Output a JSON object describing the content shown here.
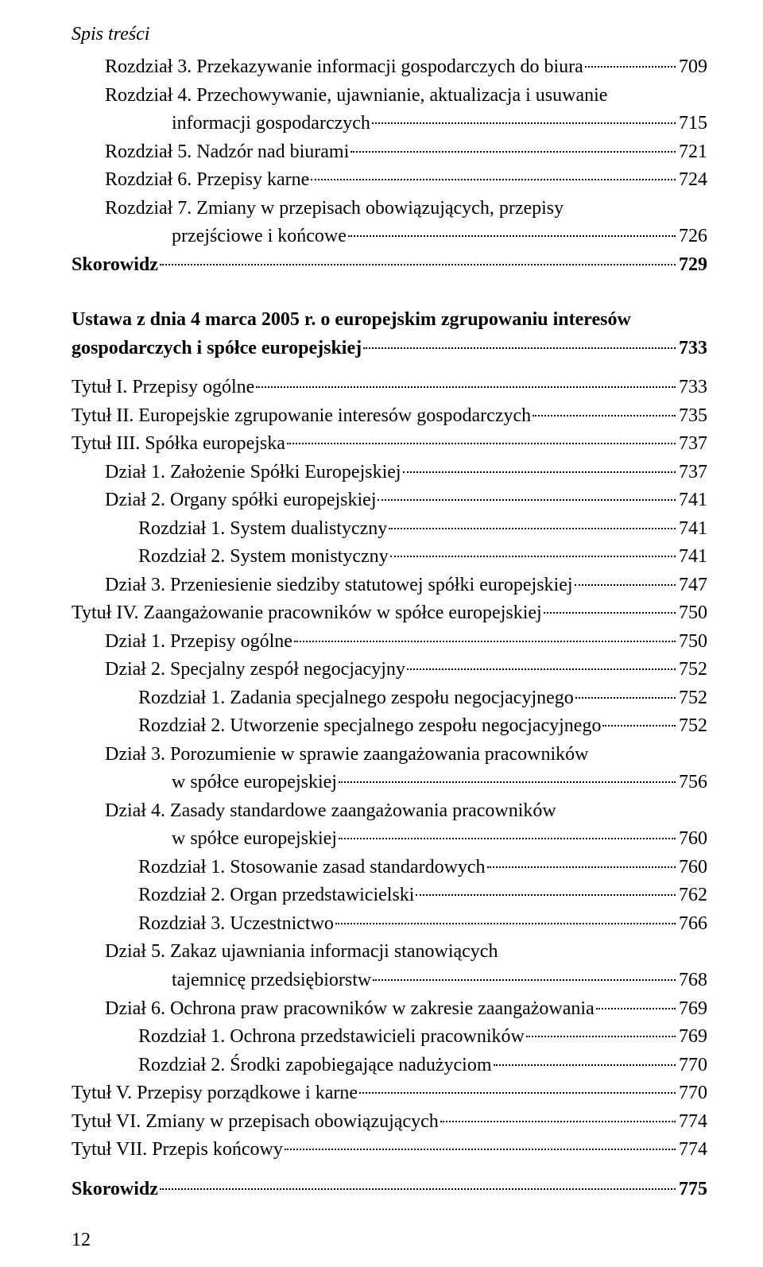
{
  "header": "Spis treści",
  "footer": "12",
  "block1": [
    {
      "indent": 1,
      "text": "Rozdział 3. Przekazywanie informacji gospodarczych do biura",
      "page": "709"
    },
    {
      "indent": 1,
      "text": "Rozdział 4. Przechowywanie, ujawnianie, aktualizacja i usuwanie"
    },
    {
      "indent": 0,
      "wrap": 2,
      "text": "informacji gospodarczych",
      "page": "715"
    },
    {
      "indent": 1,
      "text": "Rozdział 5. Nadzór nad biurami",
      "page": "721"
    },
    {
      "indent": 1,
      "text": "Rozdział 6. Przepisy karne",
      "page": "724"
    },
    {
      "indent": 1,
      "text": "Rozdział 7. Zmiany w przepisach obowiązujących, przepisy"
    },
    {
      "indent": 0,
      "wrap": 2,
      "text": "przejściowe i końcowe",
      "page": "726"
    },
    {
      "indent": 0,
      "bold": true,
      "text": "Skorowidz",
      "page": "729"
    }
  ],
  "block2_title_a": "Ustawa z dnia 4 marca 2005 r. o europejskim zgrupowaniu interesów",
  "block2_title_b": "gospodarczych i spółce europejskiej",
  "block2_title_page": "733",
  "block2": [
    {
      "indent": 0,
      "text": "Tytuł I. Przepisy ogólne",
      "page": "733"
    },
    {
      "indent": 0,
      "text": "Tytuł II. Europejskie zgrupowanie interesów gospodarczych",
      "page": "735"
    },
    {
      "indent": 0,
      "text": "Tytuł III. Spółka europejska",
      "page": "737"
    },
    {
      "indent": 1,
      "text": "Dział 1. Założenie Spółki Europejskiej",
      "page": "737"
    },
    {
      "indent": 1,
      "text": "Dział 2. Organy spółki europejskiej",
      "page": "741"
    },
    {
      "indent": 2,
      "text": "Rozdział 1. System dualistyczny",
      "page": "741"
    },
    {
      "indent": 2,
      "text": "Rozdział 2. System monistyczny",
      "page": "741"
    },
    {
      "indent": 1,
      "text": "Dział 3. Przeniesienie siedziby statutowej spółki europejskiej",
      "page": "747"
    },
    {
      "indent": 0,
      "text": "Tytuł IV. Zaangażowanie pracowników w spółce europejskiej",
      "page": "750"
    },
    {
      "indent": 1,
      "text": "Dział 1. Przepisy ogólne",
      "page": "750"
    },
    {
      "indent": 1,
      "text": "Dział 2. Specjalny zespół negocjacyjny",
      "page": "752"
    },
    {
      "indent": 2,
      "text": "Rozdział 1. Zadania specjalnego zespołu negocjacyjnego",
      "page": "752"
    },
    {
      "indent": 2,
      "text": "Rozdział 2. Utworzenie specjalnego zespołu negocjacyjnego",
      "page": "752"
    },
    {
      "indent": 1,
      "text": "Dział 3. Porozumienie w sprawie zaangażowania pracowników"
    },
    {
      "indent": 0,
      "wrap": 2,
      "text": "w spółce europejskiej",
      "page": "756"
    },
    {
      "indent": 1,
      "text": "Dział 4. Zasady standardowe zaangażowania pracowników"
    },
    {
      "indent": 0,
      "wrap": 2,
      "text": "w spółce europejskiej",
      "page": "760"
    },
    {
      "indent": 2,
      "text": "Rozdział 1. Stosowanie zasad standardowych",
      "page": "760"
    },
    {
      "indent": 2,
      "text": "Rozdział 2. Organ przedstawicielski",
      "page": "762"
    },
    {
      "indent": 2,
      "text": "Rozdział 3. Uczestnictwo",
      "page": "766"
    },
    {
      "indent": 1,
      "text": "Dział 5. Zakaz ujawniania informacji stanowiących"
    },
    {
      "indent": 0,
      "wrap": 2,
      "text": "tajemnicę przedsiębiorstw",
      "page": "768"
    },
    {
      "indent": 1,
      "text": "Dział 6. Ochrona praw pracowników w zakresie zaangażowania",
      "page": "769"
    },
    {
      "indent": 2,
      "text": "Rozdział 1. Ochrona przedstawicieli pracowników",
      "page": "769"
    },
    {
      "indent": 2,
      "text": "Rozdział 2. Środki zapobiegające nadużyciom",
      "page": "770"
    },
    {
      "indent": 0,
      "text": "Tytuł V. Przepisy porządkowe i karne",
      "page": "770"
    },
    {
      "indent": 0,
      "text": "Tytuł VI. Zmiany w przepisach obowiązujących",
      "page": "774"
    },
    {
      "indent": 0,
      "text": "Tytuł VII. Przepis końcowy",
      "page": "774"
    },
    {
      "indent": 0,
      "bold": true,
      "gap": true,
      "text": "Skorowidz",
      "page": "775"
    }
  ]
}
